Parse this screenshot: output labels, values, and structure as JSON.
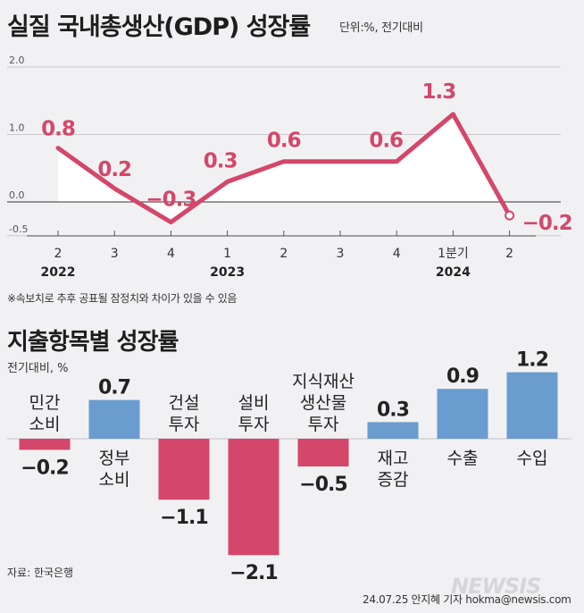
{
  "title": "실질 국내총생산(GDP) 성장률",
  "unit": "단위:%, 전기대비",
  "note": "※속보치로 추후 공표될 잠정치와 차이가 있을 수 있음",
  "title2": "지출항목별 성장률",
  "unit2": "전기대비, %",
  "source": "자료: 한국은행",
  "credit": "24.07.25 안지혜 기자 hokma@newsis.com",
  "watermark": "NEWSIS",
  "colors": {
    "line": "#d4476a",
    "negative": "#d4476a",
    "positive": "#6a9ccf",
    "fill": "#ffffff"
  },
  "chart_data": [
    {
      "type": "line",
      "x": [
        "2",
        "3",
        "4",
        "1",
        "2",
        "3",
        "4",
        "1분기",
        "2"
      ],
      "year_labels": [
        {
          "label": "2022",
          "index": 0
        },
        {
          "label": "2023",
          "index": 3
        },
        {
          "label": "2024",
          "index": 7
        }
      ],
      "values": [
        0.8,
        0.2,
        -0.3,
        0.3,
        0.6,
        0.6,
        0.6,
        1.3,
        -0.2
      ],
      "value_labels": [
        "0.8",
        "0.2",
        "−0.3",
        "0.3",
        "0.6",
        "",
        "0.6",
        "1.3",
        "−0.2"
      ],
      "yticks": [
        "2.0",
        "1.0",
        "0.0",
        "-0.5"
      ],
      "ylim": [
        -0.5,
        2.0
      ],
      "grid": true
    },
    {
      "type": "bar",
      "categories": [
        [
          "민간",
          "소비"
        ],
        [
          "정부",
          "소비"
        ],
        [
          "건설",
          "투자"
        ],
        [
          "설비",
          "투자"
        ],
        [
          "지식재산",
          "생산물",
          "투자"
        ],
        [
          "재고",
          "증감"
        ],
        [
          "수출"
        ],
        [
          "수입"
        ]
      ],
      "values": [
        -0.2,
        0.7,
        -1.1,
        -2.1,
        -0.5,
        0.3,
        0.9,
        1.2
      ],
      "value_labels": [
        "−0.2",
        "0.7",
        "−1.1",
        "−2.1",
        "−0.5",
        "0.3",
        "0.9",
        "1.2"
      ]
    }
  ]
}
